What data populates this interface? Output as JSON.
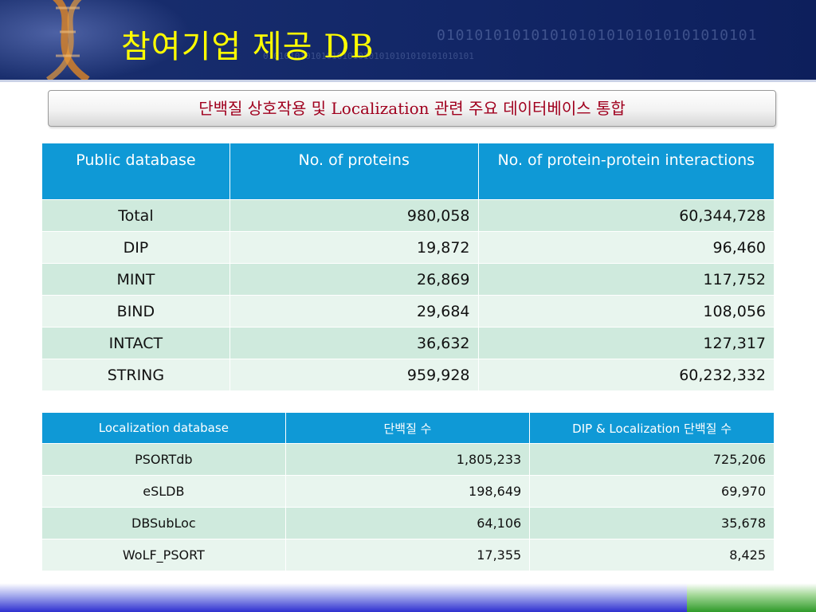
{
  "header": {
    "title": "참여기업 제공 DB",
    "binary_text": "0101010101010101010101010101010101",
    "binary_text2": "0101010101010101010101010101010101010101"
  },
  "subtitle": "단백질 상호작용 및 Localization 관련 주요 데이터베이스 통합",
  "table1": {
    "headers": [
      "Public database",
      "No. of proteins",
      "No. of protein-protein interactions"
    ],
    "rows": [
      [
        "Total",
        "980,058",
        "60,344,728"
      ],
      [
        "DIP",
        "19,872",
        "96,460"
      ],
      [
        "MINT",
        "26,869",
        "117,752"
      ],
      [
        "BIND",
        "29,684",
        "108,056"
      ],
      [
        "INTACT",
        "36,632",
        "127,317"
      ],
      [
        "STRING",
        "959,928",
        "60,232,332"
      ]
    ]
  },
  "table2": {
    "headers": [
      "Localization database",
      "단백질 수",
      "DIP & Localization 단백질 수"
    ],
    "rows": [
      [
        "PSORTdb",
        "1,805,233",
        "725,206"
      ],
      [
        "eSLDB",
        "198,649",
        "69,970"
      ],
      [
        "DBSubLoc",
        "64,106",
        "35,678"
      ],
      [
        "WoLF_PSORT",
        "17,355",
        "8,425"
      ]
    ]
  },
  "colors": {
    "header_bg": "#14296a",
    "title": "#ffff00",
    "subtitle": "#a0001e",
    "table_header": "#0f99d6",
    "row_odd": "#cfeadd",
    "row_even": "#e8f5ee",
    "footer_blue": "#2e2fd0",
    "footer_green": "#2f9a2a"
  }
}
